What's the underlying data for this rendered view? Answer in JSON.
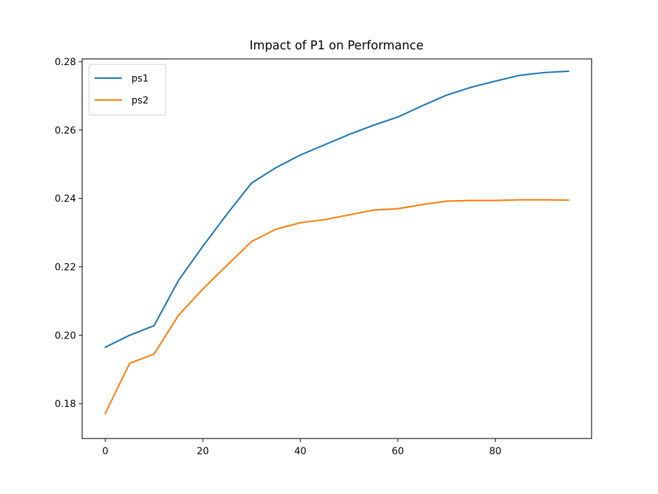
{
  "chart_data": {
    "type": "line",
    "title": "Impact of P1 on Performance",
    "xlabel": "",
    "ylabel": "",
    "xlim": [
      -4.75,
      99.75
    ],
    "ylim": [
      0.1698,
      0.2808
    ],
    "xticks": [
      0,
      20,
      40,
      60,
      80
    ],
    "xtick_labels": [
      "0",
      "20",
      "40",
      "60",
      "80"
    ],
    "yticks": [
      0.18,
      0.2,
      0.22,
      0.24,
      0.26,
      0.28
    ],
    "ytick_labels": [
      "0.18",
      "0.20",
      "0.22",
      "0.24",
      "0.26",
      "0.28"
    ],
    "grid": false,
    "legend_position": "upper-left",
    "x": [
      0,
      5,
      10,
      15,
      20,
      25,
      30,
      35,
      40,
      45,
      50,
      55,
      60,
      65,
      70,
      75,
      80,
      85,
      90,
      95
    ],
    "series": [
      {
        "name": "ps1",
        "color": "#1f77b4",
        "values": [
          0.1965,
          0.2,
          0.2028,
          0.216,
          0.226,
          0.2355,
          0.2445,
          0.249,
          0.2527,
          0.2557,
          0.2587,
          0.2614,
          0.2638,
          0.2671,
          0.2702,
          0.2725,
          0.2743,
          0.276,
          0.2768,
          0.2772
        ]
      },
      {
        "name": "ps2",
        "color": "#ff7f0e",
        "values": [
          0.1772,
          0.1918,
          0.1945,
          0.2058,
          0.2135,
          0.2205,
          0.2274,
          0.231,
          0.2329,
          0.2338,
          0.2352,
          0.2366,
          0.237,
          0.2382,
          0.2392,
          0.2394,
          0.2394,
          0.2396,
          0.2396,
          0.2395
        ]
      }
    ]
  }
}
